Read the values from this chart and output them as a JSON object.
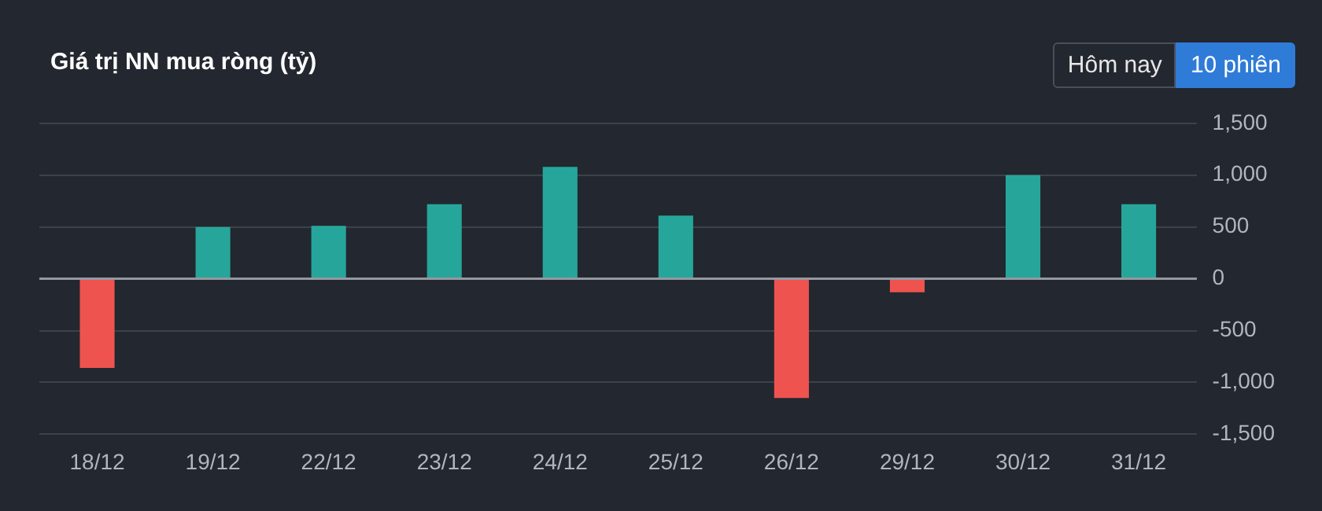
{
  "chart_data": {
    "type": "bar",
    "title": "Giá trị NN mua ròng (tỷ)",
    "annotations": [
      "Hôm nay",
      "10 phiên"
    ],
    "categories": [
      "18/12",
      "19/12",
      "22/12",
      "23/12",
      "24/12",
      "25/12",
      "26/12",
      "29/12",
      "30/12",
      "31/12"
    ],
    "values": [
      -860,
      500,
      510,
      720,
      1080,
      610,
      -1150,
      -130,
      1000,
      720
    ],
    "colors": [
      "#ef5350",
      "#26a69a",
      "#26a69a",
      "#26a69a",
      "#26a69a",
      "#26a69a",
      "#ef5350",
      "#ef5350",
      "#26a69a",
      "#26a69a"
    ],
    "ylim": [
      -1500,
      1500
    ],
    "yticks": [
      {
        "value": -1500,
        "label": "-1,500"
      },
      {
        "value": -1000,
        "label": "-1,000"
      },
      -500,
      0,
      500,
      {
        "value": 1000,
        "label": "1,000"
      },
      {
        "value": 1500,
        "label": "1,500"
      }
    ],
    "grid": "y",
    "legend": false
  }
}
